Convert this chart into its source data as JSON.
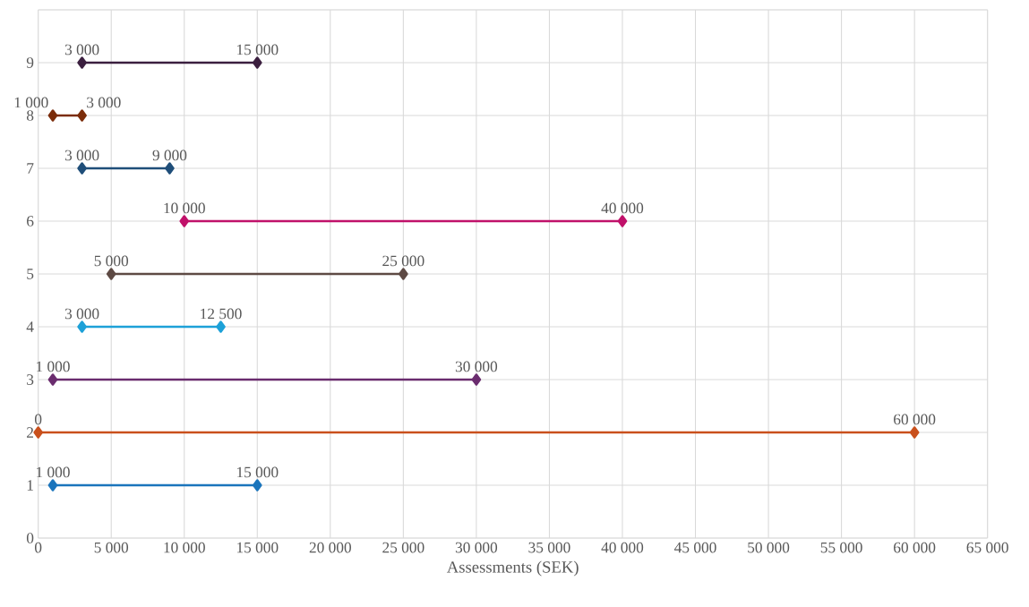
{
  "chart_data": {
    "type": "line",
    "xlabel": "Assessments (SEK)",
    "xlim": [
      0,
      65000
    ],
    "xticks": [
      0,
      {
        "value": 5000,
        "label": "5 000"
      },
      {
        "value": 10000,
        "label": "10 000"
      },
      {
        "value": 15000,
        "label": "15 000"
      },
      {
        "value": 20000,
        "label": "20 000"
      },
      {
        "value": 25000,
        "label": "25 000"
      },
      {
        "value": 30000,
        "label": "30 000"
      },
      {
        "value": 35000,
        "label": "35 000"
      },
      {
        "value": 40000,
        "label": "40 000"
      },
      {
        "value": 45000,
        "label": "45 000"
      },
      {
        "value": 50000,
        "label": "50 000"
      },
      {
        "value": 55000,
        "label": "55 000"
      },
      {
        "value": 60000,
        "label": "60 000"
      },
      {
        "value": 65000,
        "label": "65 000"
      }
    ],
    "ylim": [
      0,
      10
    ],
    "yticks": [
      0,
      1,
      2,
      3,
      4,
      5,
      6,
      7,
      8,
      9,
      {
        "value": 10,
        "label": null
      }
    ],
    "grid": true,
    "marker": "diamond",
    "line_style": "solid",
    "series": [
      {
        "color": "#1b75bc",
        "x": [
          1000,
          15000
        ],
        "values": [
          1,
          1
        ]
      },
      {
        "color": "#c9501c",
        "x": [
          0,
          60000
        ],
        "values": [
          2,
          2
        ]
      },
      {
        "color": "#6a2c6e",
        "x": [
          1000,
          30000
        ],
        "values": [
          3,
          3
        ]
      },
      {
        "color": "#1da1d8",
        "x": [
          3000,
          12500
        ],
        "values": [
          4,
          4
        ]
      },
      {
        "color": "#5e4a44",
        "x": [
          5000,
          25000
        ],
        "values": [
          5,
          5
        ]
      },
      {
        "color": "#c0116a",
        "x": [
          10000,
          40000
        ],
        "values": [
          6,
          6
        ]
      },
      {
        "color": "#1f4e79",
        "x": [
          3000,
          9000
        ],
        "values": [
          7,
          7
        ]
      },
      {
        "color": "#7b2c0a",
        "x": [
          1000,
          3000
        ],
        "values": [
          8,
          8
        ]
      },
      {
        "color": "#3b1f3f",
        "x": [
          3000,
          15000
        ],
        "values": [
          9,
          9
        ]
      }
    ],
    "annotations": [
      {
        "text": "1 000",
        "x": 1000,
        "y": 1
      },
      {
        "text": "15 000",
        "x": 15000,
        "y": 1
      },
      {
        "text": "0",
        "x": 0,
        "y": 2
      },
      {
        "text": "60 000",
        "x": 60000,
        "y": 2
      },
      {
        "text": "1 000",
        "x": 1000,
        "y": 3
      },
      {
        "text": "30 000",
        "x": 30000,
        "y": 3
      },
      {
        "text": "3 000",
        "x": 3000,
        "y": 4
      },
      {
        "text": "12 500",
        "x": 12500,
        "y": 4
      },
      {
        "text": "5 000",
        "x": 5000,
        "y": 5
      },
      {
        "text": "25 000",
        "x": 25000,
        "y": 5
      },
      {
        "text": "10 000",
        "x": 10000,
        "y": 6
      },
      {
        "text": "40 000",
        "x": 40000,
        "y": 6
      },
      {
        "text": "3 000",
        "x": 3000,
        "y": 7
      },
      {
        "text": "9 000",
        "x": 9000,
        "y": 7
      },
      {
        "text": "1 000",
        "x": 1000,
        "y": 8
      },
      {
        "text": "3 000",
        "x": 3000,
        "y": 8
      },
      {
        "text": "3 000",
        "x": 3000,
        "y": 9
      },
      {
        "text": "15 000",
        "x": 15000,
        "y": 9
      }
    ]
  }
}
